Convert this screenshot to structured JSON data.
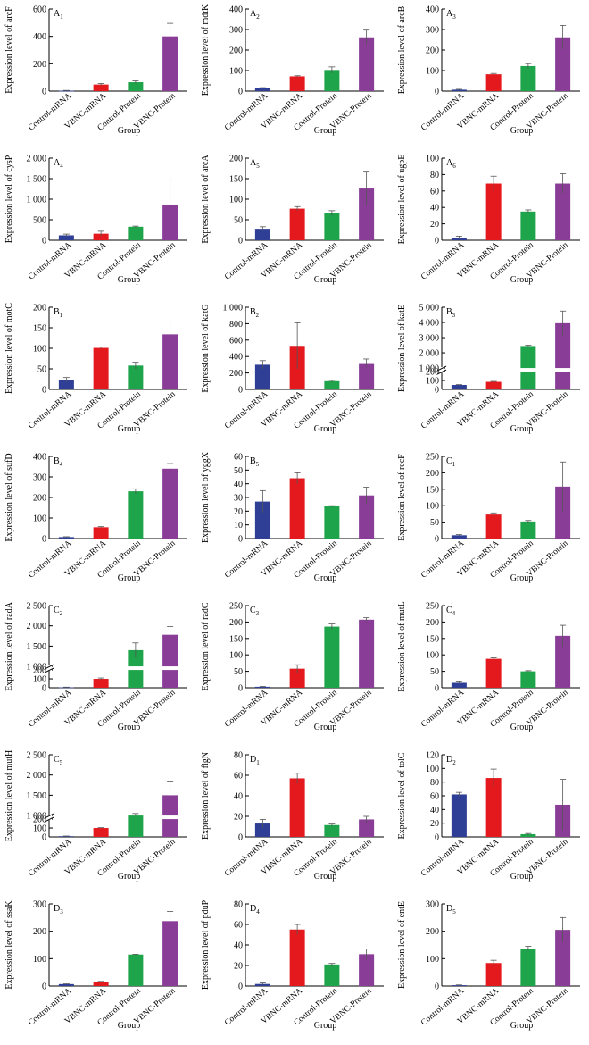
{
  "figure": {
    "x_axis_label": "Group",
    "categories": [
      "Control-mRNA",
      "VBNC-mRNA",
      "Control-Protein",
      "VBNC-Protein"
    ],
    "colors": [
      "#2e3f95",
      "#e3191e",
      "#1ea44a",
      "#8a3d97"
    ]
  },
  "chart_data": [
    {
      "type": "bar",
      "label": "A",
      "sub": "1",
      "ylabel": "Expression level of arcF",
      "categories": [
        "Control-mRNA",
        "VBNC-mRNA",
        "Control-Protein",
        "VBNC-Protein"
      ],
      "values": [
        3,
        48,
        65,
        400
      ],
      "errors": [
        2,
        8,
        10,
        95
      ],
      "ylim": [
        0,
        600
      ],
      "ticks": [
        0,
        200,
        400,
        600
      ],
      "tick_labels": [
        "0",
        "200",
        "400",
        "600"
      ]
    },
    {
      "type": "bar",
      "label": "A",
      "sub": "2",
      "ylabel": "Expression level of mdtK",
      "categories": [
        "Control-mRNA",
        "VBNC-mRNA",
        "Control-Protein",
        "VBNC-Protein"
      ],
      "values": [
        15,
        72,
        103,
        262
      ],
      "errors": [
        2,
        3,
        15,
        35
      ],
      "ylim": [
        0,
        400
      ],
      "ticks": [
        0,
        100,
        200,
        300,
        400
      ],
      "tick_labels": [
        "0",
        "100",
        "200",
        "300",
        "400"
      ]
    },
    {
      "type": "bar",
      "label": "A",
      "sub": "3",
      "ylabel": "Expression level of arcB",
      "categories": [
        "Control-mRNA",
        "VBNC-mRNA",
        "Control-Protein",
        "VBNC-Protein"
      ],
      "values": [
        7,
        82,
        122,
        262
      ],
      "errors": [
        2,
        4,
        12,
        58
      ],
      "ylim": [
        0,
        400
      ],
      "ticks": [
        0,
        100,
        200,
        300,
        400
      ],
      "tick_labels": [
        "0",
        "100",
        "200",
        "300",
        "400"
      ]
    },
    {
      "type": "bar",
      "label": "A",
      "sub": "4",
      "ylabel": "Expression level of cysP",
      "categories": [
        "Control-mRNA",
        "VBNC-mRNA",
        "Control-Protein",
        "VBNC-Protein"
      ],
      "values": [
        120,
        160,
        330,
        870
      ],
      "errors": [
        30,
        60,
        15,
        600
      ],
      "ylim": [
        0,
        2000
      ],
      "ticks": [
        0,
        500,
        1000,
        1500,
        2000
      ],
      "tick_labels": [
        "0",
        "500",
        "1 000",
        "1 500",
        "2 000"
      ]
    },
    {
      "type": "bar",
      "label": "A",
      "sub": "5",
      "ylabel": "Expression level of arcA",
      "categories": [
        "Control-mRNA",
        "VBNC-mRNA",
        "Control-Protein",
        "VBNC-Protein"
      ],
      "values": [
        28,
        77,
        66,
        126
      ],
      "errors": [
        5,
        5,
        6,
        40
      ],
      "ylim": [
        0,
        200
      ],
      "ticks": [
        0,
        50,
        100,
        150,
        200
      ],
      "tick_labels": [
        "0",
        "50",
        "100",
        "150",
        "200"
      ]
    },
    {
      "type": "bar",
      "label": "A",
      "sub": "6",
      "ylabel": "Expression level of ugpE",
      "categories": [
        "Control-mRNA",
        "VBNC-mRNA",
        "Control-Protein",
        "VBNC-Protein"
      ],
      "values": [
        3,
        69,
        35,
        69
      ],
      "errors": [
        2,
        9,
        2,
        12
      ],
      "ylim": [
        0,
        100
      ],
      "ticks": [
        0,
        20,
        40,
        60,
        80,
        100
      ],
      "tick_labels": [
        "0",
        "20",
        "40",
        "60",
        "80",
        "100"
      ]
    },
    {
      "type": "bar",
      "label": "B",
      "sub": "1",
      "ylabel": "Expression level of motC",
      "categories": [
        "Control-mRNA",
        "VBNC-mRNA",
        "Control-Protein",
        "VBNC-Protein"
      ],
      "values": [
        23,
        101,
        58,
        134
      ],
      "errors": [
        6,
        2,
        8,
        30
      ],
      "ylim": [
        0,
        200
      ],
      "ticks": [
        0,
        50,
        100,
        150,
        200
      ],
      "tick_labels": [
        "0",
        "50",
        "100",
        "150",
        "200"
      ]
    },
    {
      "type": "bar",
      "label": "B",
      "sub": "2",
      "ylabel": "Expression level of katG",
      "categories": [
        "Control-mRNA",
        "VBNC-mRNA",
        "Control-Protein",
        "VBNC-Protein"
      ],
      "values": [
        300,
        530,
        100,
        320
      ],
      "errors": [
        50,
        280,
        10,
        50
      ],
      "ylim": [
        0,
        1000
      ],
      "ticks": [
        0,
        200,
        400,
        600,
        800,
        1000
      ],
      "tick_labels": [
        "0",
        "200",
        "400",
        "600",
        "800",
        "1 000"
      ]
    },
    {
      "type": "bar",
      "label": "B",
      "sub": "3",
      "ylabel": "Expression level of katE",
      "categories": [
        "Control-mRNA",
        "VBNC-mRNA",
        "Control-Protein",
        "VBNC-Protein"
      ],
      "values": [
        50,
        85,
        2450,
        3950
      ],
      "errors": [
        4,
        5,
        50,
        800
      ],
      "ylim": [
        0,
        5000
      ],
      "broken": true,
      "ticks": [
        0,
        100,
        200,
        1000,
        2000,
        3000,
        4000,
        5000
      ],
      "tick_labels": [
        "0",
        "100",
        "200",
        "1 000",
        "2 000",
        "3 000",
        "4 000",
        "5 000"
      ]
    },
    {
      "type": "bar",
      "label": "B",
      "sub": "4",
      "ylabel": "Expression level of sufD",
      "categories": [
        "Control-mRNA",
        "VBNC-mRNA",
        "Control-Protein",
        "VBNC-Protein"
      ],
      "values": [
        7,
        55,
        230,
        340
      ],
      "errors": [
        2,
        3,
        12,
        25
      ],
      "ylim": [
        0,
        400
      ],
      "ticks": [
        0,
        100,
        200,
        300,
        400
      ],
      "tick_labels": [
        "0",
        "100",
        "200",
        "300",
        "400"
      ]
    },
    {
      "type": "bar",
      "label": "B",
      "sub": "5",
      "ylabel": "Expression level of yggX",
      "categories": [
        "Control-mRNA",
        "VBNC-mRNA",
        "Control-Protein",
        "VBNC-Protein"
      ],
      "values": [
        27,
        44,
        23.5,
        31.5
      ],
      "errors": [
        8,
        4,
        0.5,
        6
      ],
      "ylim": [
        0,
        60
      ],
      "ticks": [
        0,
        10,
        20,
        30,
        40,
        50,
        60
      ],
      "tick_labels": [
        "0",
        "10",
        "20",
        "30",
        "40",
        "50",
        "60"
      ]
    },
    {
      "type": "bar",
      "label": "C",
      "sub": "1",
      "ylabel": "Expression level of recF",
      "categories": [
        "Control-mRNA",
        "VBNC-mRNA",
        "Control-Protein",
        "VBNC-Protein"
      ],
      "values": [
        10,
        73,
        52,
        158
      ],
      "errors": [
        2,
        5,
        3,
        75
      ],
      "ylim": [
        0,
        250
      ],
      "ticks": [
        0,
        50,
        100,
        150,
        200,
        250
      ],
      "tick_labels": [
        "0",
        "50",
        "100",
        "150",
        "200",
        "250"
      ]
    },
    {
      "type": "bar",
      "label": "C",
      "sub": "2",
      "ylabel": "Expression level of radA",
      "categories": [
        "Control-mRNA",
        "VBNC-mRNA",
        "Control-Protein",
        "VBNC-Protein"
      ],
      "values": [
        5,
        100,
        1400,
        1780
      ],
      "errors": [
        2,
        10,
        180,
        200
      ],
      "ylim": [
        0,
        2500
      ],
      "broken": true,
      "ticks": [
        0,
        100,
        200,
        1000,
        1500,
        2000,
        2500
      ],
      "tick_labels": [
        "0",
        "100",
        "200",
        "1 000",
        "1 500",
        "2 000",
        "2 500"
      ]
    },
    {
      "type": "bar",
      "label": "C",
      "sub": "3",
      "ylabel": "Expression level of radC",
      "categories": [
        "Control-mRNA",
        "VBNC-mRNA",
        "Control-Protein",
        "VBNC-Protein"
      ],
      "values": [
        3,
        58,
        186,
        207
      ],
      "errors": [
        1,
        12,
        8,
        6
      ],
      "ylim": [
        0,
        250
      ],
      "ticks": [
        0,
        50,
        100,
        150,
        200,
        250
      ],
      "tick_labels": [
        "0",
        "50",
        "100",
        "150",
        "200",
        "250"
      ]
    },
    {
      "type": "bar",
      "label": "C",
      "sub": "4",
      "ylabel": "Expression level of mutL",
      "categories": [
        "Control-mRNA",
        "VBNC-mRNA",
        "Control-Protein",
        "VBNC-Protein"
      ],
      "values": [
        15,
        88,
        50,
        158
      ],
      "errors": [
        3,
        3,
        2,
        32
      ],
      "ylim": [
        0,
        250
      ],
      "ticks": [
        0,
        50,
        100,
        150,
        200,
        250
      ],
      "tick_labels": [
        "0",
        "50",
        "100",
        "150",
        "200",
        "250"
      ]
    },
    {
      "type": "bar",
      "label": "C",
      "sub": "5",
      "ylabel": "Expression level of mutH",
      "categories": [
        "Control-mRNA",
        "VBNC-mRNA",
        "Control-Protein",
        "VBNC-Protein"
      ],
      "values": [
        8,
        100,
        1000,
        1500
      ],
      "errors": [
        2,
        4,
        50,
        350
      ],
      "ylim": [
        0,
        2500
      ],
      "broken": true,
      "ticks": [
        0,
        100,
        200,
        1000,
        1500,
        2000,
        2500
      ],
      "tick_labels": [
        "0",
        "100",
        "200",
        "1 000",
        "1 500",
        "2 000",
        "2 500"
      ]
    },
    {
      "type": "bar",
      "label": "D",
      "sub": "1",
      "ylabel": "Expression level of flgN",
      "categories": [
        "Control-mRNA",
        "VBNC-mRNA",
        "Control-Protein",
        "VBNC-Protein"
      ],
      "values": [
        13,
        57,
        11.5,
        17
      ],
      "errors": [
        4,
        5,
        1,
        3
      ],
      "ylim": [
        0,
        80
      ],
      "ticks": [
        0,
        20,
        40,
        60,
        80
      ],
      "tick_labels": [
        "0",
        "20",
        "40",
        "60",
        "80"
      ]
    },
    {
      "type": "bar",
      "label": "D",
      "sub": "2",
      "ylabel": "Expression level of tolC",
      "categories": [
        "Control-mRNA",
        "VBNC-mRNA",
        "Control-Protein",
        "VBNC-Protein"
      ],
      "values": [
        62,
        86,
        4,
        47
      ],
      "errors": [
        3,
        13,
        1,
        37
      ],
      "ylim": [
        0,
        120
      ],
      "ticks": [
        0,
        20,
        40,
        60,
        80,
        100,
        120
      ],
      "tick_labels": [
        "0",
        "20",
        "40",
        "60",
        "80",
        "100",
        "120"
      ]
    },
    {
      "type": "bar",
      "label": "D",
      "sub": "3",
      "ylabel": "Expression level of ssaK",
      "categories": [
        "Control-mRNA",
        "VBNC-mRNA",
        "Control-Protein",
        "VBNC-Protein"
      ],
      "values": [
        7,
        15,
        115,
        237
      ],
      "errors": [
        1,
        2,
        1,
        35
      ],
      "ylim": [
        0,
        300
      ],
      "ticks": [
        0,
        100,
        200,
        300
      ],
      "tick_labels": [
        "0",
        "100",
        "200",
        "300"
      ]
    },
    {
      "type": "bar",
      "label": "D",
      "sub": "4",
      "ylabel": "Expression level of pduP",
      "categories": [
        "Control-mRNA",
        "VBNC-mRNA",
        "Control-Protein",
        "VBNC-Protein"
      ],
      "values": [
        2,
        55,
        21,
        31
      ],
      "errors": [
        1,
        5,
        1,
        5
      ],
      "ylim": [
        0,
        80
      ],
      "ticks": [
        0,
        20,
        40,
        60,
        80
      ],
      "tick_labels": [
        "0",
        "20",
        "40",
        "60",
        "80"
      ]
    },
    {
      "type": "bar",
      "label": "D",
      "sub": "5",
      "ylabel": "Expression level of entE",
      "categories": [
        "Control-mRNA",
        "VBNC-mRNA",
        "Control-Protein",
        "VBNC-Protein"
      ],
      "values": [
        3,
        84,
        137,
        205
      ],
      "errors": [
        1,
        10,
        8,
        45
      ],
      "ylim": [
        0,
        300
      ],
      "ticks": [
        0,
        100,
        200,
        300
      ],
      "tick_labels": [
        "0",
        "100",
        "200",
        "300"
      ]
    }
  ]
}
